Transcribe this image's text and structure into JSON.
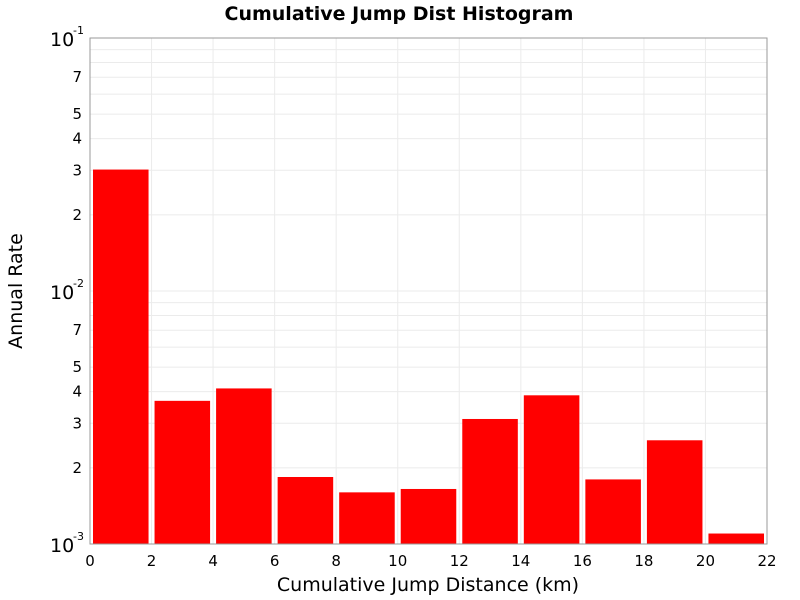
{
  "chart_data": {
    "type": "bar",
    "title": "Cumulative Jump Dist Histogram",
    "xlabel": "Cumulative Jump Distance (km)",
    "ylabel": "Annual Rate",
    "xlim": [
      0,
      22
    ],
    "ylim": [
      0.001,
      0.1
    ],
    "yscale": "log",
    "grid": true,
    "bar_color": "#ff0000",
    "x_ticks": [
      "0",
      "2",
      "4",
      "6",
      "8",
      "10",
      "12",
      "14",
      "16",
      "18",
      "20",
      "22"
    ],
    "y_major_ticks": [
      {
        "value": 0.1,
        "base": "10",
        "exp": "-1"
      },
      {
        "value": 0.01,
        "base": "10",
        "exp": "-2"
      },
      {
        "value": 0.001,
        "base": "10",
        "exp": "-3"
      }
    ],
    "y_minor_ticks": [
      {
        "value": 0.07,
        "label": "7"
      },
      {
        "value": 0.05,
        "label": "5"
      },
      {
        "value": 0.04,
        "label": "4"
      },
      {
        "value": 0.03,
        "label": "3"
      },
      {
        "value": 0.02,
        "label": "2"
      },
      {
        "value": 0.007,
        "label": "7"
      },
      {
        "value": 0.005,
        "label": "5"
      },
      {
        "value": 0.004,
        "label": "4"
      },
      {
        "value": 0.003,
        "label": "3"
      },
      {
        "value": 0.002,
        "label": "2"
      }
    ],
    "bins": [
      {
        "x0": 0,
        "x1": 2,
        "value": 0.0302
      },
      {
        "x0": 2,
        "x1": 4,
        "value": 0.00368
      },
      {
        "x0": 4,
        "x1": 6,
        "value": 0.00412
      },
      {
        "x0": 6,
        "x1": 8,
        "value": 0.00184
      },
      {
        "x0": 8,
        "x1": 10,
        "value": 0.0016
      },
      {
        "x0": 10,
        "x1": 12,
        "value": 0.00165
      },
      {
        "x0": 12,
        "x1": 14,
        "value": 0.00312
      },
      {
        "x0": 14,
        "x1": 16,
        "value": 0.00387
      },
      {
        "x0": 16,
        "x1": 18,
        "value": 0.0018
      },
      {
        "x0": 18,
        "x1": 20,
        "value": 0.00257
      },
      {
        "x0": 20,
        "x1": 22,
        "value": 0.0011
      }
    ]
  }
}
